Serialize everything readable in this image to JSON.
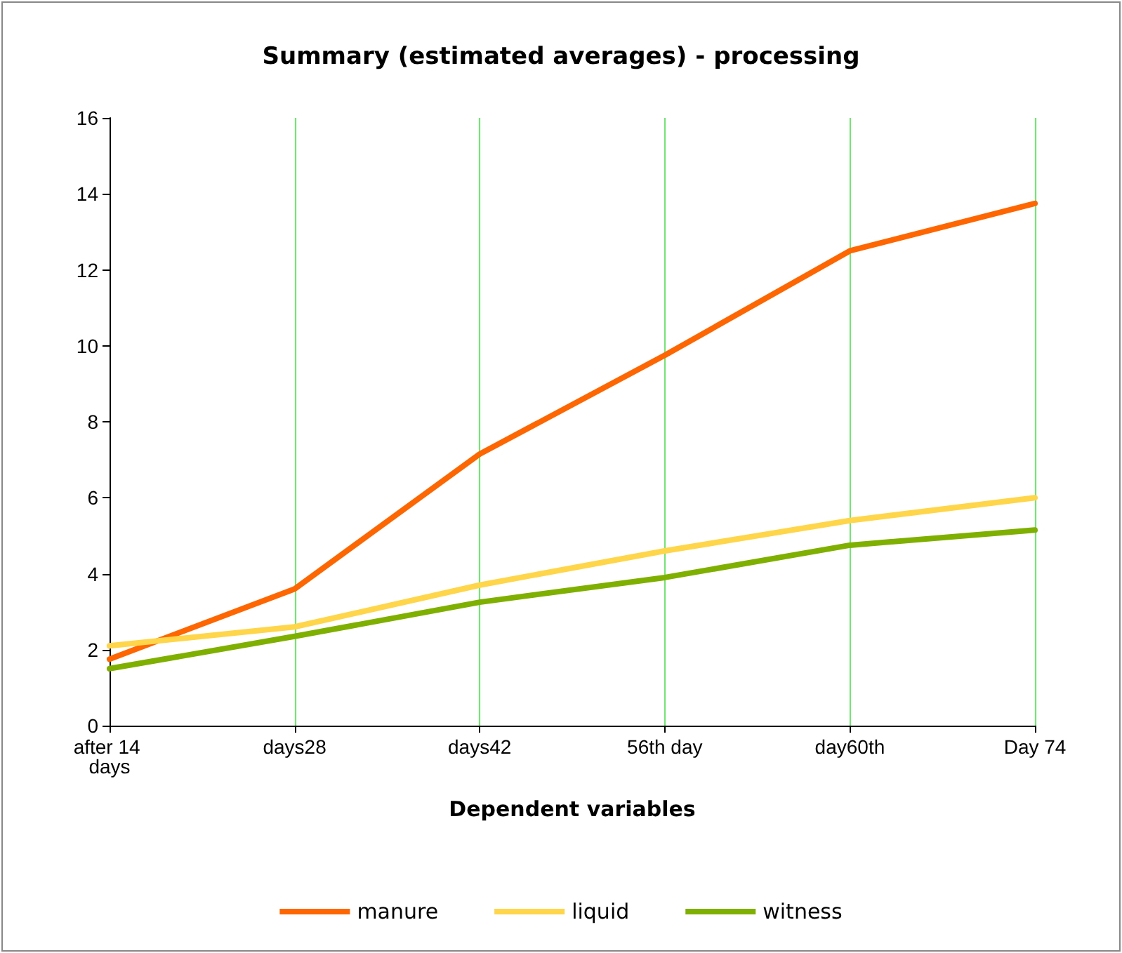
{
  "chart_data": {
    "type": "line",
    "title": "Summary (estimated averages) - processing",
    "xlabel": "Dependent variables",
    "categories": [
      "after 14 days",
      "days28",
      "days42",
      "56th day",
      "day60th",
      "Day 74"
    ],
    "series": [
      {
        "name": "manure",
        "color": "#ff6600",
        "values": [
          1.75,
          3.6,
          7.15,
          9.75,
          12.5,
          13.75
        ]
      },
      {
        "name": "liquid",
        "color": "#ffd54a",
        "values": [
          2.1,
          2.6,
          3.7,
          4.6,
          5.4,
          6.0
        ]
      },
      {
        "name": "witness",
        "color": "#7fb000",
        "values": [
          1.5,
          2.35,
          3.25,
          3.9,
          4.75,
          5.15
        ]
      }
    ],
    "ylim": [
      0,
      16
    ],
    "yticks": [
      0,
      2,
      4,
      6,
      8,
      10,
      12,
      14,
      16
    ],
    "grid": "x",
    "legend": "bottom",
    "marker": "none",
    "line_style": "solid"
  }
}
